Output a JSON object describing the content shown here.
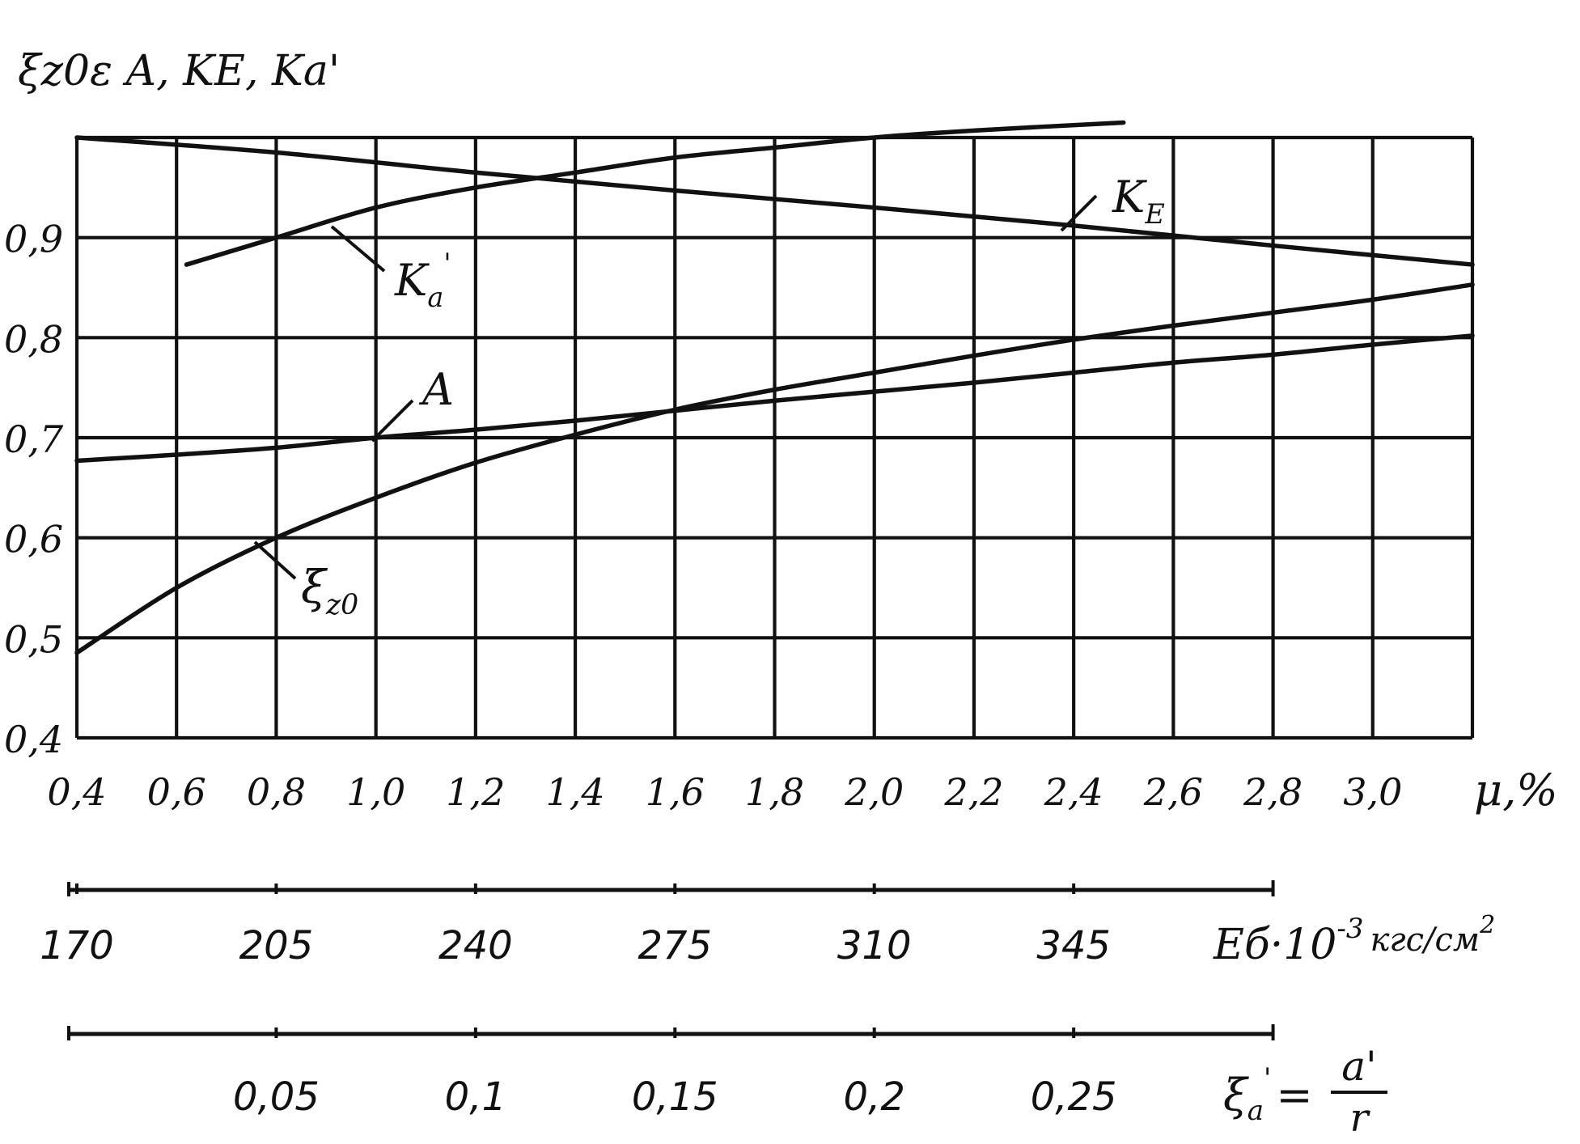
{
  "chart_data": {
    "type": "line",
    "ylabel": "ξz0ε A, KE, Ka'",
    "xlabel": "μ,%",
    "xlim": [
      0.4,
      3.2
    ],
    "ylim": [
      0.4,
      1.0
    ],
    "x_ticks": [
      "0,4",
      "0,6",
      "0,8",
      "1,0",
      "1,2",
      "1,4",
      "1,6",
      "1,8",
      "2,0",
      "2,2",
      "2,4",
      "2,6",
      "2,8",
      "3,0"
    ],
    "y_ticks": [
      "0,4",
      "0,5",
      "0,6",
      "0,7",
      "0,8",
      "0,9"
    ],
    "grid": true,
    "series": [
      {
        "name": "KE",
        "label": "K",
        "label_sub": "E",
        "x": [
          0.4,
          0.8,
          1.2,
          1.6,
          2.0,
          2.4,
          2.8,
          3.2
        ],
        "y": [
          1.0,
          0.985,
          0.965,
          0.947,
          0.93,
          0.912,
          0.892,
          0.873
        ]
      },
      {
        "name": "Ka'",
        "label": "K",
        "label_sub": "a",
        "label_sup": "'",
        "x": [
          0.62,
          0.8,
          1.0,
          1.2,
          1.4,
          1.6,
          1.8,
          2.0,
          2.2,
          2.5
        ],
        "y": [
          0.873,
          0.9,
          0.93,
          0.95,
          0.965,
          0.98,
          0.99,
          1.0,
          1.007,
          1.015
        ]
      },
      {
        "name": "A",
        "label": "A",
        "x": [
          0.4,
          0.6,
          0.8,
          1.0,
          1.2,
          1.4,
          1.6,
          1.8,
          2.0,
          2.2,
          2.4,
          2.6,
          2.8,
          3.0,
          3.2
        ],
        "y": [
          0.677,
          0.683,
          0.69,
          0.7,
          0.708,
          0.717,
          0.727,
          0.737,
          0.746,
          0.755,
          0.765,
          0.775,
          0.783,
          0.793,
          0.802
        ]
      },
      {
        "name": "ξz0",
        "label": "ξ",
        "label_sub": "z0",
        "x": [
          0.4,
          0.6,
          0.8,
          1.0,
          1.2,
          1.4,
          1.6,
          1.8,
          2.0,
          2.2,
          2.4,
          2.6,
          2.8,
          3.0,
          3.2
        ],
        "y": [
          0.485,
          0.55,
          0.6,
          0.64,
          0.675,
          0.703,
          0.728,
          0.748,
          0.765,
          0.782,
          0.798,
          0.812,
          0.825,
          0.838,
          0.853
        ]
      }
    ],
    "secondary_scales": [
      {
        "name": "E_b",
        "label": "Eб·10",
        "label_exp": "-3",
        "label_unit": "кгс/см",
        "label_unit_exp": "2",
        "ticks": [
          "170",
          "205",
          "240",
          "275",
          "310",
          "345"
        ],
        "tick_mu": [
          0.4,
          0.8,
          1.2,
          1.6,
          2.0,
          2.4
        ],
        "end_mu": 2.8
      },
      {
        "name": "xi_a",
        "label": "ξ",
        "label_sub": "a",
        "label_sup": "'",
        "label_eq": "=",
        "label_num": "a'",
        "label_den": "r",
        "ticks": [
          "0,05",
          "0,1",
          "0,15",
          "0,2",
          "0,25"
        ],
        "tick_mu": [
          0.8,
          1.2,
          1.6,
          2.0,
          2.4
        ],
        "start_mu": 0.4,
        "end_mu": 2.8
      }
    ]
  }
}
